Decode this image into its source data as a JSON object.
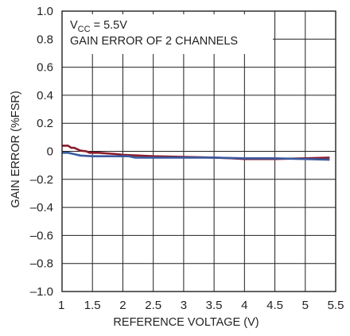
{
  "chart_data": {
    "type": "line",
    "xlabel": "REFERENCE VOLTAGE (V)",
    "ylabel": "GAIN ERROR (%FSR)",
    "xlim": [
      1,
      5.5
    ],
    "ylim": [
      -1.0,
      1.0
    ],
    "x_ticks": [
      1,
      1.5,
      2,
      2.5,
      3,
      3.5,
      4,
      4.5,
      5,
      5.5
    ],
    "x_tick_labels": [
      "1",
      "1.5",
      "2",
      "2.5",
      "3",
      "3.5",
      "4",
      "4.5",
      "5",
      "5.5"
    ],
    "y_ticks": [
      1.0,
      0.8,
      0.6,
      0.4,
      0.2,
      0,
      -0.2,
      -0.4,
      -0.6,
      -0.8,
      -1.0
    ],
    "y_tick_labels": [
      "1.0",
      "0.8",
      "0.6",
      "0.4",
      "0.2",
      "0",
      "–0.2",
      "–0.4",
      "–0.6",
      "–0.8",
      "–1.0"
    ],
    "grid": true,
    "annotations": {
      "vcc_main": "V",
      "vcc_sub": "CC",
      "vcc_value": " = 5.5V",
      "note": "GAIN ERROR OF 2 CHANNELS"
    },
    "series": [
      {
        "color": "#8b1a2b",
        "x": [
          1.0,
          1.1,
          1.15,
          1.2,
          1.3,
          1.4,
          1.45,
          1.6,
          1.9,
          2.0,
          2.5,
          3.0,
          3.5,
          3.8,
          4.0,
          4.5,
          5.0,
          5.4
        ],
        "y": [
          0.04,
          0.04,
          0.025,
          0.025,
          0.005,
          0.0,
          -0.01,
          -0.01,
          -0.02,
          -0.025,
          -0.035,
          -0.04,
          -0.045,
          -0.05,
          -0.055,
          -0.055,
          -0.05,
          -0.045
        ]
      },
      {
        "color": "#3a5ba0",
        "x": [
          1.0,
          1.1,
          1.2,
          1.3,
          1.5,
          1.8,
          2.1,
          2.2,
          2.5,
          3.0,
          3.5,
          4.0,
          4.5,
          5.0,
          5.4
        ],
        "y": [
          -0.01,
          -0.01,
          -0.02,
          -0.03,
          -0.035,
          -0.035,
          -0.035,
          -0.045,
          -0.045,
          -0.045,
          -0.045,
          -0.05,
          -0.05,
          -0.055,
          -0.06
        ]
      }
    ]
  }
}
